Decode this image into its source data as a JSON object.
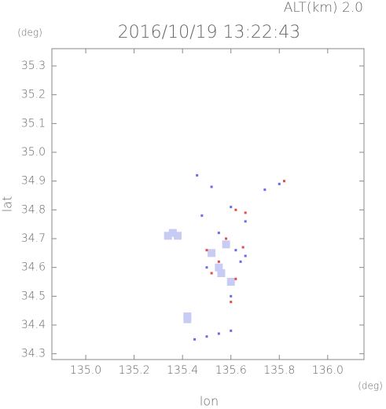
{
  "chart_data": {
    "type": "scatter",
    "title": "2016/10/19 13:22:43",
    "subtitle": "ALT(km) 2.0",
    "x_label": "lon",
    "y_label": "lat",
    "x_unit": "(deg)",
    "y_unit": "(deg)",
    "xlim": [
      134.86,
      136.15
    ],
    "ylim": [
      34.28,
      35.36
    ],
    "xticks": [
      {
        "value": 135.0,
        "label": "135.0"
      },
      135.2,
      135.4,
      135.6,
      135.8,
      {
        "value": 136.0,
        "label": "136.0"
      }
    ],
    "yticks": [
      35.3,
      35.2,
      35.1,
      {
        "value": 35.0,
        "label": "35.0"
      },
      34.9,
      34.8,
      34.7,
      34.6,
      34.5,
      34.4,
      34.3
    ],
    "series": [
      {
        "color": "#c8ccf4",
        "x": [
          135.36,
          135.38,
          135.34,
          135.42,
          135.42,
          135.55,
          135.6,
          135.52,
          135.58,
          135.56
        ],
        "y": [
          34.72,
          34.71,
          34.71,
          34.43,
          34.42,
          34.6,
          34.55,
          34.65,
          34.68,
          34.58
        ]
      },
      {
        "color": "#6a6ae8",
        "x": [
          135.46,
          135.52,
          135.6,
          135.66,
          135.74,
          135.8,
          135.62,
          135.66,
          135.64,
          135.55,
          135.48,
          135.5,
          135.6,
          135.45,
          135.5,
          135.55,
          135.6
        ],
        "y": [
          34.92,
          34.88,
          34.81,
          34.76,
          34.87,
          34.89,
          34.66,
          34.64,
          34.62,
          34.72,
          34.78,
          34.6,
          34.5,
          34.35,
          34.36,
          34.37,
          34.38
        ]
      },
      {
        "color": "#e84848",
        "x": [
          135.62,
          135.66,
          135.82,
          135.58,
          135.55,
          135.52,
          135.62,
          135.6,
          135.65,
          135.5
        ],
        "y": [
          34.8,
          34.79,
          34.9,
          34.7,
          34.62,
          34.58,
          34.56,
          34.48,
          34.67,
          34.66
        ]
      }
    ]
  }
}
